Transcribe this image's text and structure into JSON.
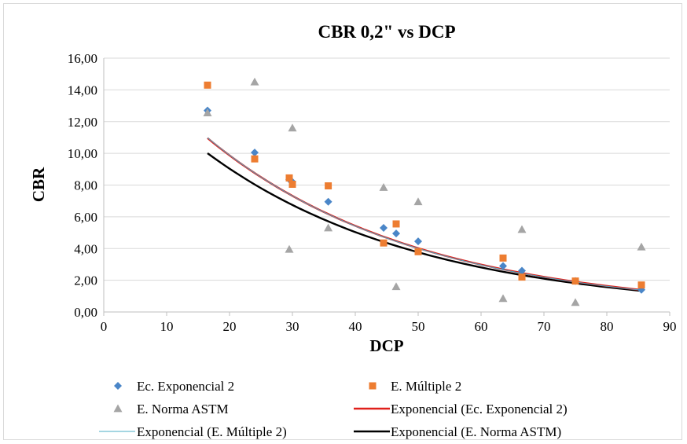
{
  "chart_data": {
    "type": "scatter",
    "title": "CBR 0,2\" vs DCP",
    "xlabel": "DCP",
    "ylabel": "CBR",
    "xlim": [
      0,
      90
    ],
    "ylim": [
      0,
      16
    ],
    "x_ticks": [
      0,
      10,
      20,
      30,
      40,
      50,
      60,
      70,
      80,
      90
    ],
    "x_tick_labels": [
      "0",
      "10",
      "20",
      "30",
      "40",
      "50",
      "60",
      "70",
      "80",
      "90"
    ],
    "y_ticks": [
      0,
      2,
      4,
      6,
      8,
      10,
      12,
      14,
      16
    ],
    "y_tick_labels": [
      "0,00",
      "2,00",
      "4,00",
      "6,00",
      "8,00",
      "10,00",
      "12,00",
      "14,00",
      "16,00"
    ],
    "grid": "horizontal",
    "legend_position": "bottom",
    "series": [
      {
        "name": "Ec. Exponencial 2",
        "kind": "points",
        "marker": "diamond",
        "color": "#4a86c8",
        "x": [
          16.5,
          24.0,
          29.5,
          30.0,
          35.7,
          44.5,
          46.5,
          50.0,
          63.5,
          66.5,
          75.0,
          85.5
        ],
        "y": [
          12.7,
          10.05,
          8.35,
          8.2,
          6.95,
          5.3,
          4.95,
          4.45,
          2.9,
          2.6,
          1.95,
          1.4
        ]
      },
      {
        "name": "E. Múltiple 2",
        "kind": "points",
        "marker": "square",
        "color": "#ed7d31",
        "x": [
          16.5,
          24.0,
          29.5,
          30.0,
          35.7,
          44.5,
          46.5,
          50.0,
          63.5,
          66.5,
          75.0,
          85.5
        ],
        "y": [
          14.3,
          9.65,
          8.45,
          8.05,
          7.95,
          4.35,
          5.55,
          3.8,
          3.4,
          2.2,
          1.95,
          1.7
        ]
      },
      {
        "name": "E. Norma ASTM",
        "kind": "points",
        "marker": "triangle",
        "color": "#a5a5a5",
        "x": [
          16.5,
          24.0,
          29.5,
          30.0,
          35.7,
          44.5,
          46.5,
          50.0,
          63.5,
          66.5,
          75.0,
          85.5
        ],
        "y": [
          12.55,
          14.5,
          3.95,
          11.6,
          5.3,
          7.85,
          1.6,
          6.95,
          0.85,
          5.2,
          0.6,
          4.1
        ]
      },
      {
        "name": "Exponencial (Ec. Exponencial 2)",
        "kind": "trend",
        "color": "#e0201b",
        "x_range": [
          16.5,
          85.5
        ],
        "a": 17.95,
        "b": -0.0299
      },
      {
        "name": "Exponencial (E. Múltiple 2)",
        "kind": "trend",
        "color": "#4bacc6",
        "x_range": [
          16.5,
          85.5
        ],
        "a": 18.05,
        "b": -0.0301
      },
      {
        "name": "Exponencial (E. Norma ASTM)",
        "kind": "trend",
        "color": "#000000",
        "x_range": [
          16.5,
          85.5
        ],
        "a": 16.2,
        "b": -0.0292
      }
    ]
  }
}
